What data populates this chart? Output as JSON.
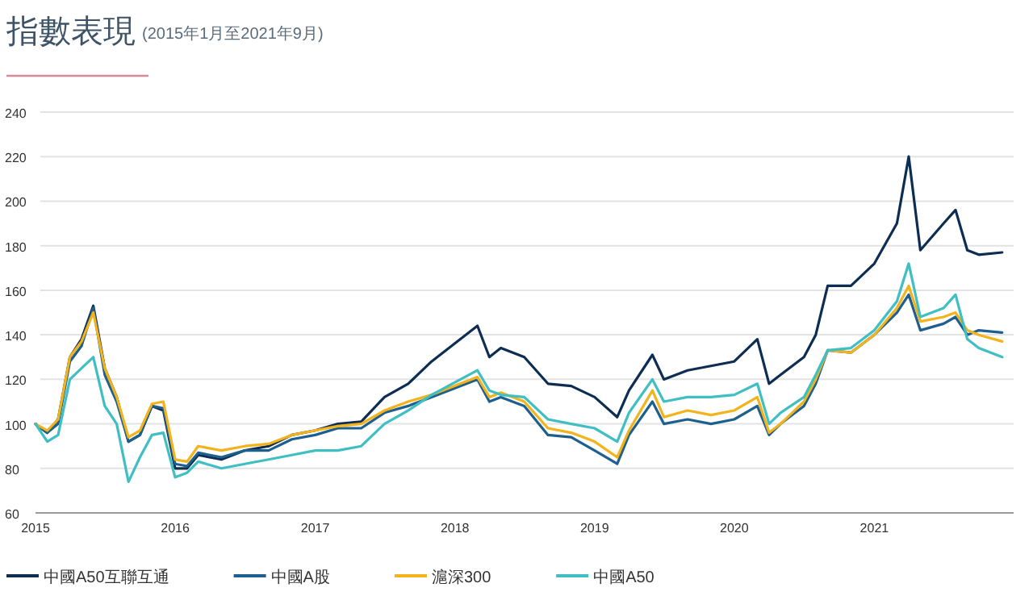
{
  "chart_data": {
    "type": "line",
    "title": "指數表現",
    "subtitle": "(2015年1月至2021年9月)",
    "x": [
      "2015-01",
      "2015-02",
      "2015-03",
      "2015-04",
      "2015-05",
      "2015-06",
      "2015-07",
      "2015-08",
      "2015-09",
      "2015-10",
      "2015-11",
      "2015-12",
      "2016-01",
      "2016-02",
      "2016-03",
      "2016-05",
      "2016-07",
      "2016-09",
      "2016-11",
      "2017-01",
      "2017-03",
      "2017-05",
      "2017-07",
      "2017-09",
      "2017-11",
      "2018-03",
      "2018-04",
      "2018-05",
      "2018-07",
      "2018-09",
      "2018-11",
      "2019-01",
      "2019-03",
      "2019-04",
      "2019-06",
      "2019-07",
      "2019-09",
      "2019-11",
      "2020-01",
      "2020-03",
      "2020-04",
      "2020-05",
      "2020-07",
      "2020-08",
      "2020-09",
      "2020-11",
      "2021-01",
      "2021-03",
      "2021-04",
      "2021-05",
      "2021-07",
      "2021-08",
      "2021-09",
      "2021-10",
      "2021-12"
    ],
    "series": [
      {
        "name": "中國A50互聯互通",
        "color": "#0d2d52",
        "values": [
          100,
          96,
          102,
          130,
          138,
          153,
          125,
          112,
          92,
          95,
          108,
          106,
          80,
          80,
          86,
          84,
          88,
          90,
          95,
          97,
          100,
          101,
          112,
          118,
          128,
          144,
          130,
          134,
          130,
          118,
          117,
          112,
          103,
          115,
          131,
          120,
          124,
          126,
          128,
          138,
          118,
          122,
          130,
          140,
          162,
          162,
          172,
          190,
          220,
          178,
          190,
          196,
          178,
          176,
          177
        ]
      },
      {
        "name": "中國A股",
        "color": "#1d5f8f",
        "values": [
          100,
          96,
          100,
          128,
          135,
          152,
          122,
          110,
          92,
          95,
          108,
          107,
          82,
          81,
          87,
          85,
          88,
          88,
          93,
          95,
          98,
          98,
          105,
          108,
          112,
          120,
          110,
          112,
          108,
          95,
          94,
          88,
          82,
          95,
          110,
          100,
          102,
          100,
          102,
          108,
          95,
          100,
          108,
          118,
          133,
          132,
          140,
          150,
          158,
          142,
          145,
          148,
          140,
          142,
          141
        ]
      },
      {
        "name": "滬深300",
        "color": "#f2b31c",
        "values": [
          100,
          97,
          102,
          130,
          137,
          150,
          125,
          112,
          94,
          97,
          109,
          110,
          84,
          83,
          90,
          88,
          90,
          91,
          95,
          97,
          99,
          100,
          106,
          110,
          113,
          121,
          112,
          114,
          110,
          98,
          96,
          92,
          85,
          97,
          115,
          103,
          106,
          104,
          106,
          112,
          96,
          100,
          110,
          120,
          133,
          132,
          140,
          152,
          162,
          146,
          148,
          150,
          142,
          140,
          137
        ]
      },
      {
        "name": "中國A50",
        "color": "#3fbfc4",
        "values": [
          100,
          92,
          95,
          120,
          125,
          130,
          108,
          100,
          74,
          85,
          95,
          96,
          76,
          78,
          83,
          80,
          82,
          84,
          86,
          88,
          88,
          90,
          100,
          106,
          113,
          124,
          115,
          113,
          112,
          102,
          100,
          98,
          92,
          105,
          120,
          110,
          112,
          112,
          113,
          118,
          100,
          105,
          112,
          122,
          133,
          134,
          142,
          155,
          172,
          148,
          152,
          158,
          138,
          134,
          130
        ]
      }
    ],
    "xlim": [
      "2015-01-01",
      "2021-12-31"
    ],
    "xticks": [
      "2015",
      "2016",
      "2017",
      "2018",
      "2019",
      "2020",
      "2021"
    ],
    "ylim": [
      60,
      240
    ],
    "yticks": [
      60,
      80,
      100,
      120,
      140,
      160,
      180,
      200,
      220,
      240
    ],
    "grid": "y",
    "legend": "bottom"
  }
}
